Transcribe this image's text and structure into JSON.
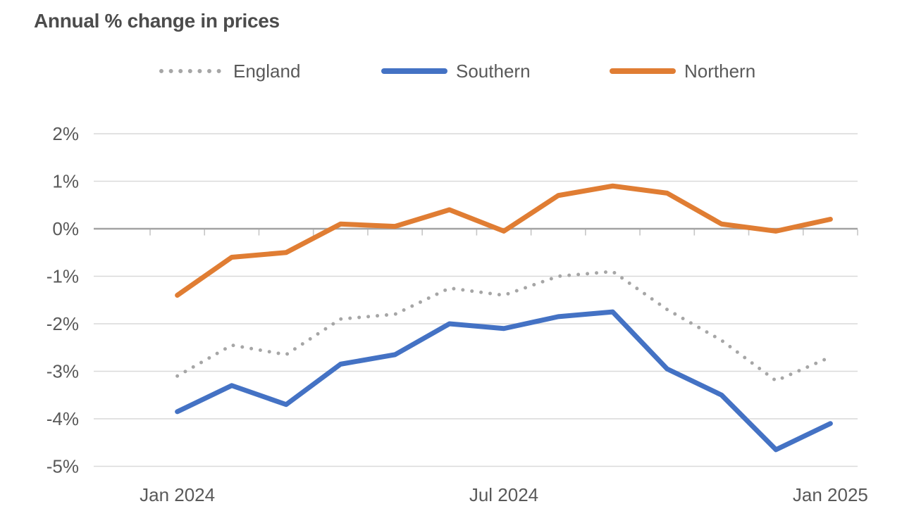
{
  "title": "Annual % change in prices",
  "colors": {
    "background": "#FFFFFF",
    "title_text": "#4C4C4C",
    "axis_text": "#595959",
    "gridline": "#D9D9D9",
    "zero_line": "#A3A3A3",
    "tick_mark": "#C6C6C6"
  },
  "chart_data": {
    "type": "line",
    "title": "Annual % change in prices",
    "xlabel": "",
    "ylabel": "",
    "unit": "%",
    "ylim": [
      -5,
      2
    ],
    "grid": true,
    "legend_position": "top",
    "categories": [
      "Jan 2024",
      "Feb 2024",
      "Mar 2024",
      "Apr 2024",
      "May 2024",
      "Jun 2024",
      "Jul 2024",
      "Aug 2024",
      "Sep 2024",
      "Oct 2024",
      "Nov 2024",
      "Dec 2024",
      "Jan 2025"
    ],
    "visible_x_ticks": [
      {
        "index": 0,
        "label": "Jan 2024"
      },
      {
        "index": 6,
        "label": "Jul 2024"
      },
      {
        "index": 12,
        "label": "Jan 2025"
      }
    ],
    "y_ticks": [
      {
        "value": 2,
        "label": "2%"
      },
      {
        "value": 1,
        "label": "1%"
      },
      {
        "value": 0,
        "label": "0%"
      },
      {
        "value": -1,
        "label": "-1%"
      },
      {
        "value": -2,
        "label": "-2%"
      },
      {
        "value": -3,
        "label": "-3%"
      },
      {
        "value": -4,
        "label": "-4%"
      },
      {
        "value": -5,
        "label": "-5%"
      }
    ],
    "series": [
      {
        "name": "England",
        "style": "dotted",
        "color": "#A6A6A6",
        "values": [
          -3.1,
          -2.45,
          -2.65,
          -1.9,
          -1.8,
          -1.25,
          -1.4,
          -1.0,
          -0.9,
          -1.7,
          -2.35,
          -3.2,
          -2.7
        ]
      },
      {
        "name": "Southern",
        "style": "solid",
        "color": "#4472C4",
        "values": [
          -3.85,
          -3.3,
          -3.7,
          -2.85,
          -2.65,
          -2.0,
          -2.1,
          -1.85,
          -1.75,
          -2.95,
          -3.5,
          -4.65,
          -4.1
        ]
      },
      {
        "name": "Northern",
        "style": "solid",
        "color": "#E07D33",
        "values": [
          -1.4,
          -0.6,
          -0.5,
          0.1,
          0.05,
          0.4,
          -0.05,
          0.7,
          0.9,
          0.75,
          0.1,
          -0.05,
          0.2
        ]
      }
    ]
  }
}
